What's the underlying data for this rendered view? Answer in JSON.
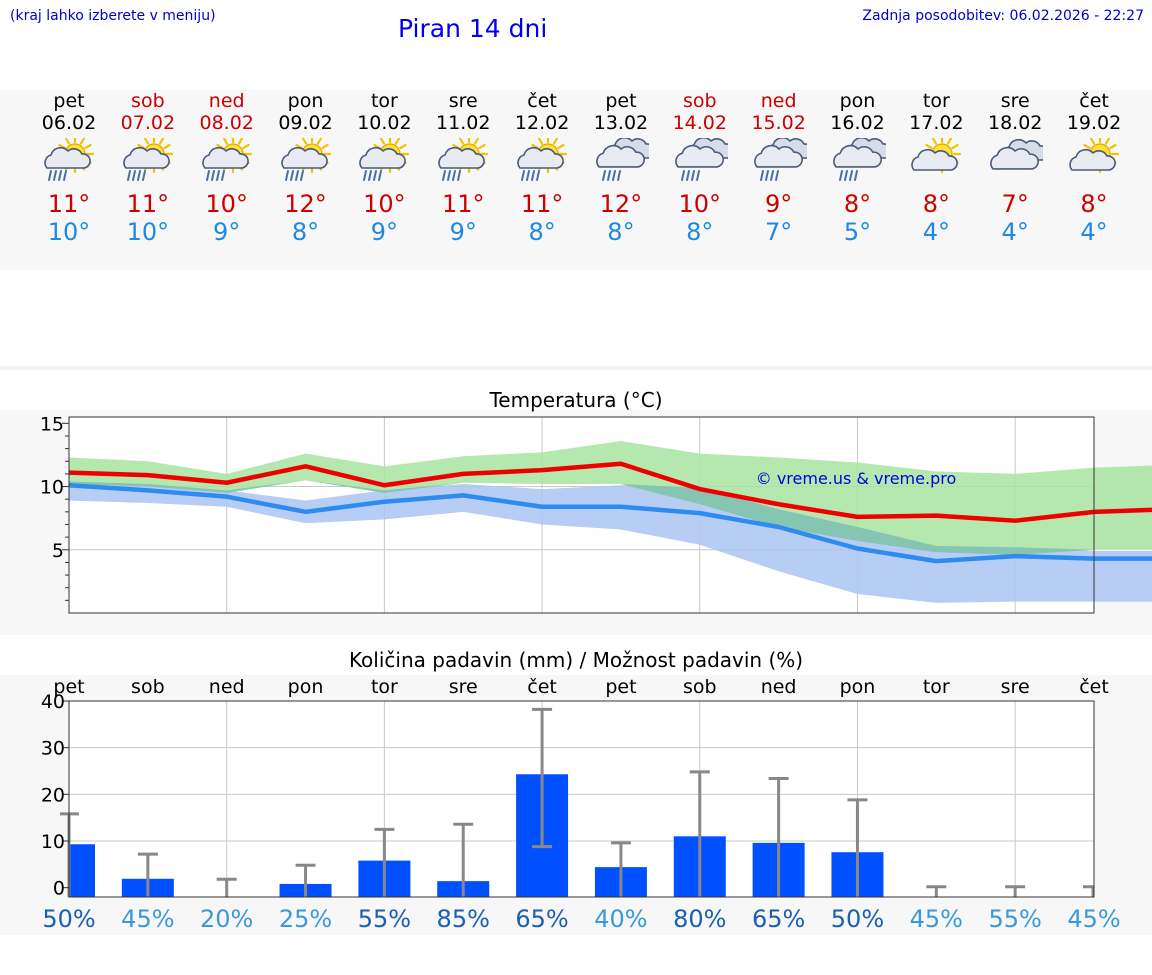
{
  "header": {
    "location_hint": "(kraj lahko izberete v meniju)",
    "title": "Piran 14 dni",
    "updated": "Zadnja posodobitev: 06.02.2026 - 22:27"
  },
  "days": [
    {
      "name": "pet",
      "date": "06.02",
      "weekend": false,
      "icon": "sun-cloud-rain-icon",
      "max": "11°",
      "min": "10°"
    },
    {
      "name": "sob",
      "date": "07.02",
      "weekend": true,
      "icon": "sun-cloud-rain-icon",
      "max": "11°",
      "min": "10°"
    },
    {
      "name": "ned",
      "date": "08.02",
      "weekend": true,
      "icon": "sun-cloud-rain-icon",
      "max": "10°",
      "min": "9°"
    },
    {
      "name": "pon",
      "date": "09.02",
      "weekend": false,
      "icon": "sun-cloud-rain-icon",
      "max": "12°",
      "min": "8°"
    },
    {
      "name": "tor",
      "date": "10.02",
      "weekend": false,
      "icon": "sun-cloud-rain-icon",
      "max": "10°",
      "min": "9°"
    },
    {
      "name": "sre",
      "date": "11.02",
      "weekend": false,
      "icon": "sun-cloud-rain-icon",
      "max": "11°",
      "min": "9°"
    },
    {
      "name": "čet",
      "date": "12.02",
      "weekend": false,
      "icon": "sun-cloud-rain-icon",
      "max": "11°",
      "min": "8°"
    },
    {
      "name": "pet",
      "date": "13.02",
      "weekend": false,
      "icon": "cloud-rain-icon",
      "max": "12°",
      "min": "8°"
    },
    {
      "name": "sob",
      "date": "14.02",
      "weekend": true,
      "icon": "cloud-rain-icon",
      "max": "10°",
      "min": "8°"
    },
    {
      "name": "ned",
      "date": "15.02",
      "weekend": true,
      "icon": "cloud-rain-icon",
      "max": "9°",
      "min": "7°"
    },
    {
      "name": "pon",
      "date": "16.02",
      "weekend": false,
      "icon": "cloud-rain-icon",
      "max": "8°",
      "min": "5°"
    },
    {
      "name": "tor",
      "date": "17.02",
      "weekend": false,
      "icon": "sun-cloud-icon",
      "max": "8°",
      "min": "4°"
    },
    {
      "name": "sre",
      "date": "18.02",
      "weekend": false,
      "icon": "cloud-icon",
      "max": "7°",
      "min": "4°"
    },
    {
      "name": "čet",
      "date": "19.02",
      "weekend": false,
      "icon": "sun-cloud-icon",
      "max": "8°",
      "min": "4°"
    }
  ],
  "colors": {
    "max_line": "#ee0000",
    "min_line": "#2e8bf0",
    "max_band": "#a8e4a0",
    "min_band": "#aac4f2",
    "overlap_band": "#7ec4a8",
    "precip_bar": "#0050ff",
    "error_bar": "#888888",
    "prob_dark": "#1a5fb4",
    "prob_light": "#3a9ad9"
  },
  "chart_data": [
    {
      "type": "line",
      "title": "Temperatura (°C)",
      "watermark": "© vreme.us & vreme.pro",
      "ylim": [
        0,
        15.5
      ],
      "yticks": [
        "5",
        "10",
        "15"
      ],
      "x": [
        0,
        1,
        2,
        3,
        4,
        5,
        6,
        7,
        8,
        9,
        10,
        11,
        12,
        13,
        13.95
      ],
      "series": [
        {
          "name": "max",
          "values": [
            11.1,
            10.9,
            10.3,
            11.6,
            10.1,
            11.0,
            11.3,
            11.8,
            9.8,
            8.6,
            7.6,
            7.7,
            7.3,
            8.0,
            8.2
          ]
        },
        {
          "name": "max_upper",
          "values": [
            12.3,
            12.0,
            11.0,
            12.6,
            11.6,
            12.4,
            12.7,
            13.6,
            12.6,
            12.3,
            11.9,
            11.2,
            11.0,
            11.5,
            11.7
          ]
        },
        {
          "name": "max_lower",
          "values": [
            10.2,
            10.0,
            9.5,
            10.5,
            9.5,
            10.3,
            10.2,
            10.2,
            8.6,
            6.8,
            5.7,
            4.8,
            4.6,
            5.0,
            5.0
          ]
        },
        {
          "name": "min",
          "values": [
            10.1,
            9.7,
            9.2,
            8.0,
            8.8,
            9.3,
            8.4,
            8.4,
            7.9,
            6.8,
            5.1,
            4.1,
            4.5,
            4.3,
            4.3
          ]
        },
        {
          "name": "min_upper",
          "values": [
            10.4,
            10.2,
            9.7,
            8.9,
            9.7,
            10.2,
            9.8,
            10.1,
            9.9,
            8.2,
            6.8,
            5.3,
            5.2,
            4.9,
            4.9
          ]
        },
        {
          "name": "min_lower",
          "values": [
            8.9,
            8.7,
            8.4,
            7.1,
            7.4,
            8.0,
            7.0,
            6.6,
            5.4,
            3.3,
            1.5,
            0.8,
            0.9,
            0.9,
            0.9
          ]
        }
      ]
    },
    {
      "type": "bar",
      "title": "Količina padavin (mm) / Možnost padavin (%)",
      "categories": [
        "pet",
        "sob",
        "ned",
        "pon",
        "tor",
        "sre",
        "čet",
        "pet",
        "sob",
        "ned",
        "pon",
        "tor",
        "sre",
        "čet"
      ],
      "ylim": [
        -2,
        40
      ],
      "yticks": [
        "0",
        "10",
        "20",
        "30",
        "40"
      ],
      "values": [
        9.3,
        1.9,
        0.0,
        0.8,
        5.8,
        1.4,
        24.3,
        4.4,
        11.0,
        9.6,
        7.6,
        0.0,
        0.0,
        0.0
      ],
      "error_high": [
        15.8,
        7.2,
        1.8,
        4.8,
        12.5,
        13.6,
        38.2,
        9.6,
        24.8,
        23.4,
        18.8,
        0.2,
        0.2,
        0.2
      ],
      "error_low": [
        0,
        0,
        0,
        0,
        0,
        0,
        8.8,
        0,
        0,
        0,
        0,
        0,
        0,
        0
      ],
      "probability": [
        "50%",
        "45%",
        "20%",
        "25%",
        "55%",
        "85%",
        "65%",
        "40%",
        "80%",
        "65%",
        "50%",
        "45%",
        "55%",
        "45%"
      ],
      "probability_dark": [
        true,
        false,
        false,
        false,
        true,
        true,
        true,
        false,
        true,
        true,
        true,
        false,
        false,
        false
      ]
    }
  ]
}
